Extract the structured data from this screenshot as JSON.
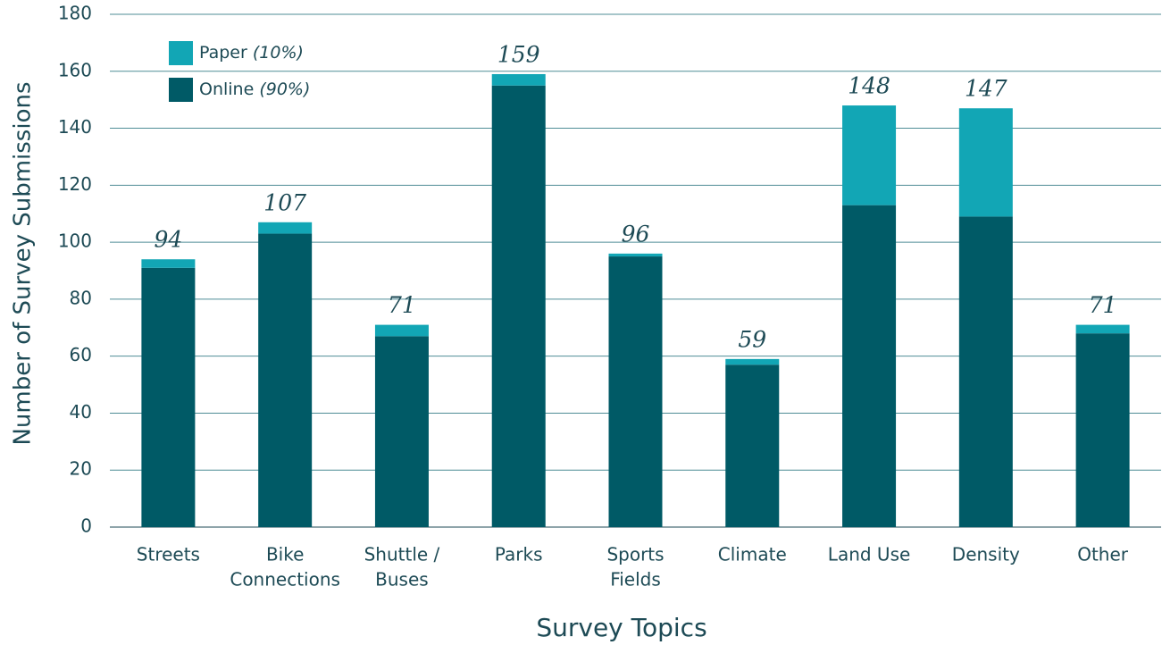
{
  "chart_data": {
    "type": "stacked_bar",
    "categories": [
      [
        "Streets"
      ],
      [
        "Bike",
        "Connections"
      ],
      [
        "Shuttle /",
        "Buses"
      ],
      [
        "Parks"
      ],
      [
        "Sports",
        "Fields"
      ],
      [
        "Climate"
      ],
      [
        "Land Use"
      ],
      [
        "Density"
      ],
      [
        "Other"
      ]
    ],
    "series": [
      {
        "name": "Online",
        "note": "(90%)",
        "color": "#005a66",
        "values": [
          91,
          103,
          67,
          155,
          95,
          57,
          113,
          109,
          68
        ]
      },
      {
        "name": "Paper",
        "note": "(10%)",
        "color": "#12a6b5",
        "values": [
          3,
          4,
          4,
          4,
          1,
          2,
          35,
          38,
          3
        ]
      }
    ],
    "totals": [
      94,
      107,
      71,
      159,
      96,
      59,
      148,
      147,
      71
    ],
    "xlabel": "Survey Topics",
    "ylabel": "Number of Survey Submissions",
    "ylim": [
      0,
      180
    ],
    "yticks": [
      0,
      20,
      40,
      60,
      80,
      100,
      120,
      140,
      160,
      180
    ],
    "grid": true
  }
}
